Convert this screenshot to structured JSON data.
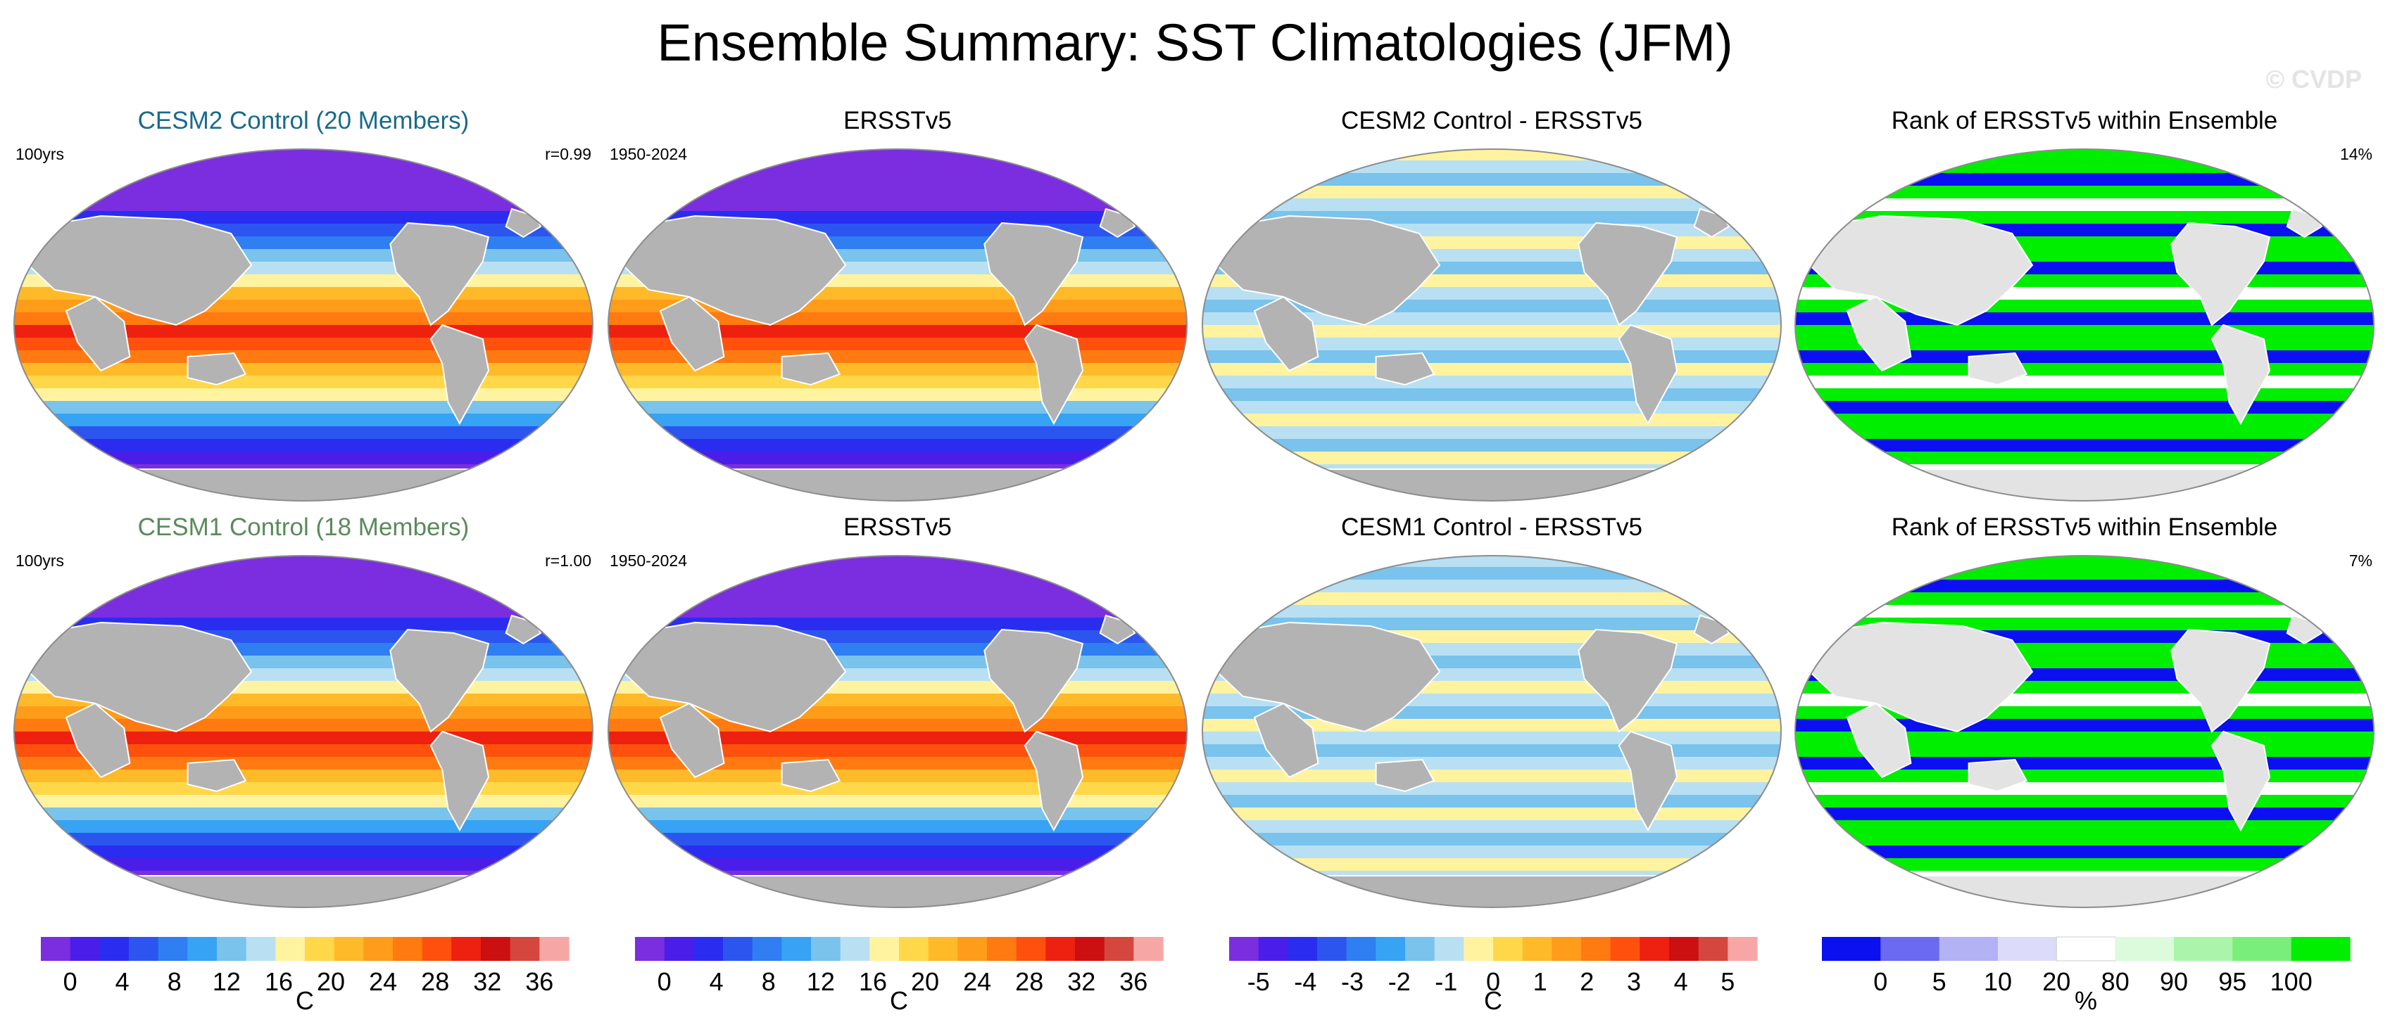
{
  "figure": {
    "title": "Ensemble Summary: SST Climatologies (JFM)",
    "watermark": "© CVDP"
  },
  "rows": [
    {
      "panels": [
        {
          "title": "CESM2 Control (20 Members)",
          "title_color": "#1a6a8a",
          "left_label": "100yrs",
          "right_label": "r=0.99",
          "field": "sst"
        },
        {
          "title": "ERSSTv5",
          "title_color": "#000000",
          "left_label": "1950-2024",
          "right_label": "",
          "field": "sst"
        },
        {
          "title": "CESM2 Control - ERSSTv5",
          "title_color": "#000000",
          "left_label": "",
          "right_label": "",
          "field": "diff"
        },
        {
          "title": "Rank of ERSSTv5 within Ensemble",
          "title_color": "#000000",
          "left_label": "",
          "right_label": "14%",
          "field": "rank"
        }
      ]
    },
    {
      "panels": [
        {
          "title": "CESM1 Control (18 Members)",
          "title_color": "#5b8a5b",
          "left_label": "100yrs",
          "right_label": "r=1.00",
          "field": "sst"
        },
        {
          "title": "ERSSTv5",
          "title_color": "#000000",
          "left_label": "1950-2024",
          "right_label": "",
          "field": "sst"
        },
        {
          "title": "CESM1 Control - ERSSTv5",
          "title_color": "#000000",
          "left_label": "",
          "right_label": "",
          "field": "diff"
        },
        {
          "title": "Rank of ERSSTv5 within Ensemble",
          "title_color": "#000000",
          "left_label": "",
          "right_label": "7%",
          "field": "rank"
        }
      ]
    }
  ],
  "colorbars": [
    {
      "units": "C",
      "colors": [
        "#7b2ee0",
        "#4a1ee8",
        "#2a2df0",
        "#2c55f0",
        "#2f7ef2",
        "#36a3f5",
        "#79c3ec",
        "#b8e0f2",
        "#fff3a0",
        "#ffd84a",
        "#ffba2a",
        "#ff9c1a",
        "#ff7a10",
        "#ff500e",
        "#ee2010",
        "#cc0f10",
        "#d4463e",
        "#f7a6a6"
      ],
      "ticks": [
        "0",
        "4",
        "8",
        "12",
        "16",
        "20",
        "24",
        "28",
        "32",
        "36"
      ]
    },
    {
      "units": "C",
      "colors": [
        "#7b2ee0",
        "#4a1ee8",
        "#2a2df0",
        "#2c55f0",
        "#2f7ef2",
        "#36a3f5",
        "#79c3ec",
        "#b8e0f2",
        "#fff3a0",
        "#ffd84a",
        "#ffba2a",
        "#ff9c1a",
        "#ff7a10",
        "#ff500e",
        "#ee2010",
        "#cc0f10",
        "#d4463e",
        "#f7a6a6"
      ],
      "ticks": [
        "0",
        "4",
        "8",
        "12",
        "16",
        "20",
        "24",
        "28",
        "32",
        "36"
      ]
    },
    {
      "units": "C",
      "colors": [
        "#7b2ee0",
        "#4a1ee8",
        "#2a2df0",
        "#2c55f0",
        "#2f7ef2",
        "#36a3f5",
        "#79c3ec",
        "#b8e0f2",
        "#fff3a0",
        "#ffd84a",
        "#ffba2a",
        "#ff9c1a",
        "#ff7a10",
        "#ff500e",
        "#ee2010",
        "#cc0f10",
        "#d4463e",
        "#f7a6a6"
      ],
      "ticks": [
        "-5",
        "-4",
        "-3",
        "-2",
        "-1",
        "0",
        "1",
        "2",
        "3",
        "4",
        "5"
      ]
    },
    {
      "units": "%",
      "colors": [
        "#0a10f0",
        "#6a6af2",
        "#b2b2f5",
        "#dcdcfa",
        "#ffffff",
        "#dcfadc",
        "#aaf5aa",
        "#7aee7a",
        "#00ee00"
      ],
      "ticks": [
        "0",
        "5",
        "10",
        "20",
        "80",
        "90",
        "95",
        "100"
      ]
    }
  ]
}
